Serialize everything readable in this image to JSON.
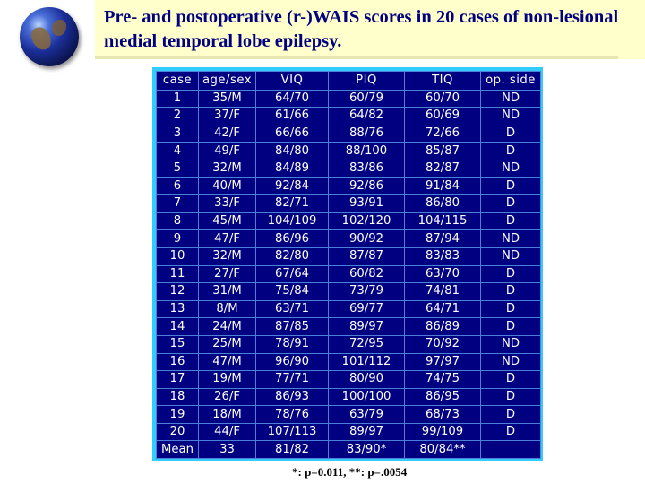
{
  "title": "Pre- and postoperative (r-)WAIS scores in 20 cases of non-lesional medial temporal lobe epilepsy.",
  "headers": [
    "case",
    "age/sex",
    "VIQ",
    "PIQ",
    "TIQ",
    "op. side"
  ],
  "rows": [
    [
      "1",
      "35/M",
      "64/70",
      "60/79",
      "60/70",
      "ND"
    ],
    [
      "2",
      "37/F",
      "61/66",
      "64/82",
      "60/69",
      "ND"
    ],
    [
      "3",
      "42/F",
      "66/66",
      "88/76",
      "72/66",
      "D"
    ],
    [
      "4",
      "49/F",
      "84/80",
      "88/100",
      "85/87",
      "D"
    ],
    [
      "5",
      "32/M",
      "84/89",
      "83/86",
      "82/87",
      "ND"
    ],
    [
      "6",
      "40/M",
      "92/84",
      "92/86",
      "91/84",
      "D"
    ],
    [
      "7",
      "33/F",
      "82/71",
      "93/91",
      "86/80",
      "D"
    ],
    [
      "8",
      "45/M",
      "104/109",
      "102/120",
      "104/115",
      "D"
    ],
    [
      "9",
      "47/F",
      "86/96",
      "90/92",
      "87/94",
      "ND"
    ],
    [
      "10",
      "32/M",
      "82/80",
      "87/87",
      "83/83",
      "ND"
    ],
    [
      "11",
      "27/F",
      "67/64",
      "60/82",
      "63/70",
      "D"
    ],
    [
      "12",
      "31/M",
      "75/84",
      "73/79",
      "74/81",
      "D"
    ],
    [
      "13",
      "8/M",
      "63/71",
      "69/77",
      "64/71",
      "D"
    ],
    [
      "14",
      "24/M",
      "87/85",
      "89/97",
      "86/89",
      "D"
    ],
    [
      "15",
      "25/M",
      "78/91",
      "72/95",
      "70/92",
      "ND"
    ],
    [
      "16",
      "47/M",
      "96/90",
      "101/112",
      "97/97",
      "ND"
    ],
    [
      "17",
      "19/M",
      "77/71",
      "80/90",
      "74/75",
      "D"
    ],
    [
      "18",
      "26/F",
      "86/93",
      "100/100",
      "86/95",
      "D"
    ],
    [
      "19",
      "18/M",
      "78/76",
      "63/79",
      "68/73",
      "D"
    ],
    [
      "20",
      "44/F",
      "107/113",
      "89/97",
      "99/109",
      "D"
    ]
  ],
  "mean_row": [
    "Mean",
    "33",
    "81/82",
    "83/90*",
    "80/84**",
    ""
  ],
  "footnote": "*: p=0.011, **: p=.0054"
}
